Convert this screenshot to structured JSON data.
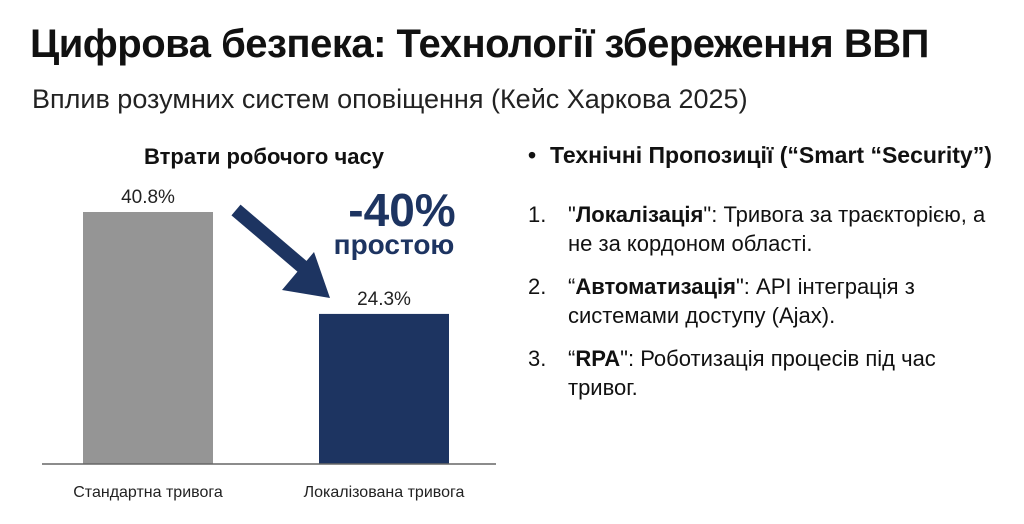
{
  "slide": {
    "title": "Цифрова безпека: Технології збереження ВВП",
    "subtitle": "Вплив розумних систем оповіщення (Кейс Харкова 2025)"
  },
  "annotation": {
    "big": "-40%",
    "small": "простою",
    "arrow_icon": "arrow-down-right-icon"
  },
  "chart_data": {
    "type": "bar",
    "title": "Втрати робочого часу",
    "categories": [
      "Стандартна тривога",
      "Локалізована тривога"
    ],
    "values": [
      40.8,
      24.3
    ],
    "value_labels": [
      "40.8%",
      "24.3%"
    ],
    "colors": [
      "#959595",
      "#1d3461"
    ],
    "xlabel": "",
    "ylabel": "",
    "ylim": [
      0,
      40.8
    ],
    "grid": false
  },
  "proposals": {
    "bullet": "•",
    "heading": "Технічні Пропозиції (“Smart “Security”)",
    "items": [
      {
        "num": "1.",
        "pre": "\"",
        "term": "Локалізація",
        "post": "\": ",
        "text": "Тривога за траєкторією, а не за кордоном області."
      },
      {
        "num": "2.",
        "pre": "“",
        "term": "Автоматизація",
        "post": "\": ",
        "text": "API інтеграція з системами доступу (Ajax)."
      },
      {
        "num": "3.",
        "pre": "“",
        "term": "RPA",
        "post": "\": ",
        "text": "Роботизація процесів під час тривог."
      }
    ]
  },
  "colors": {
    "accent": "#1d3461",
    "gray_bar": "#959595"
  }
}
